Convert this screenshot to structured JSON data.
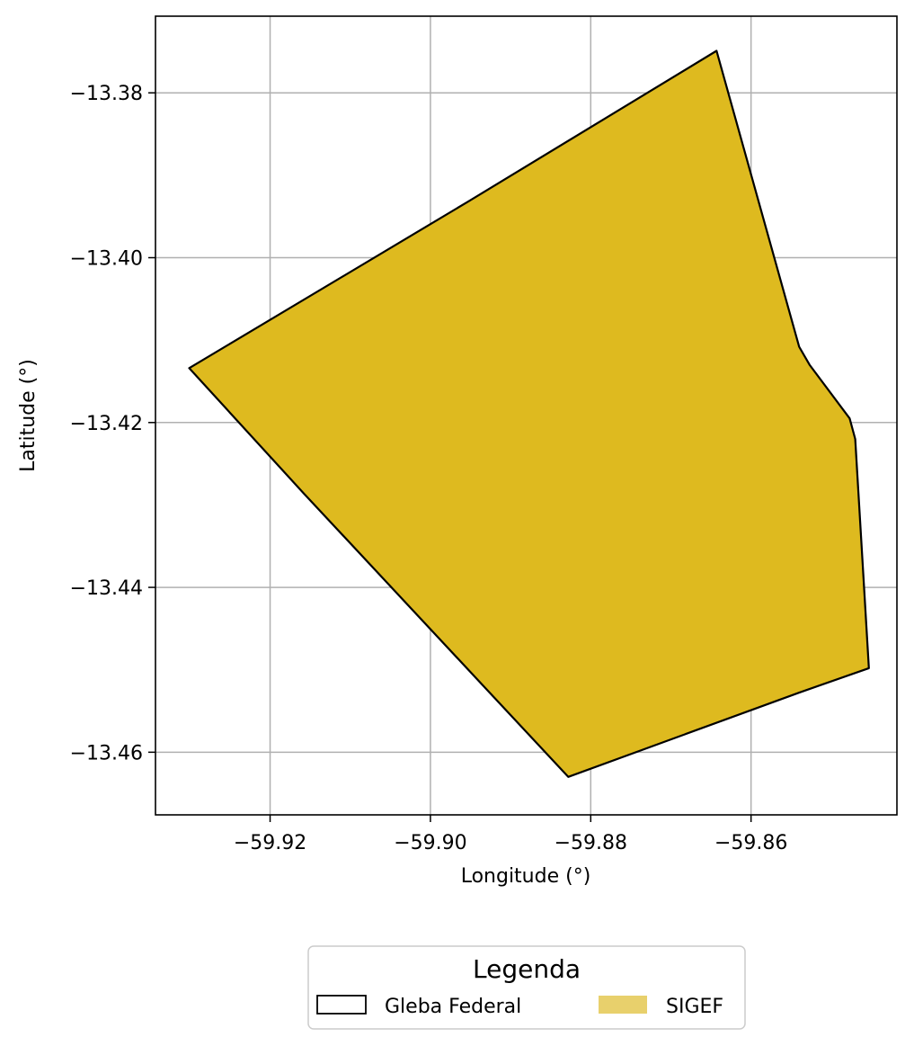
{
  "chart_data": {
    "type": "map",
    "xlabel": "Longitude (°)",
    "ylabel": "Latitude (°)",
    "xlim": [
      -59.9343,
      -59.8418
    ],
    "ylim": [
      -13.4676,
      -13.3707
    ],
    "xticks": [
      {
        "value": -59.92,
        "label": "−59.92"
      },
      {
        "value": -59.9,
        "label": "−59.90"
      },
      {
        "value": -59.88,
        "label": "−59.88"
      },
      {
        "value": -59.86,
        "label": "−59.86"
      }
    ],
    "yticks": [
      {
        "value": -13.38,
        "label": "−13.38"
      },
      {
        "value": -13.4,
        "label": "−13.40"
      },
      {
        "value": -13.42,
        "label": "−13.42"
      },
      {
        "value": -13.44,
        "label": "−13.44"
      },
      {
        "value": -13.46,
        "label": "−13.46"
      }
    ],
    "grid": true,
    "layers": [
      {
        "name": "SIGEF",
        "fill": "#deba1f",
        "stroke": "none",
        "polygon": [
          [
            -59.8643,
            -13.3749
          ],
          [
            -59.854,
            -13.4108
          ],
          [
            -59.8527,
            -13.413
          ],
          [
            -59.8477,
            -13.4195
          ],
          [
            -59.847,
            -13.422
          ],
          [
            -59.8453,
            -13.4498
          ],
          [
            -59.8541,
            -13.4528
          ],
          [
            -59.8828,
            -13.463
          ],
          [
            -59.9158,
            -13.4286
          ],
          [
            -59.9301,
            -13.4134
          ],
          [
            -59.8953,
            -13.3932
          ]
        ]
      },
      {
        "name": "Gleba Federal",
        "fill": "none",
        "stroke": "#000000",
        "polygon": [
          [
            -59.8643,
            -13.3749
          ],
          [
            -59.854,
            -13.4108
          ],
          [
            -59.8527,
            -13.413
          ],
          [
            -59.8477,
            -13.4195
          ],
          [
            -59.847,
            -13.422
          ],
          [
            -59.8453,
            -13.4498
          ],
          [
            -59.8541,
            -13.4528
          ],
          [
            -59.8828,
            -13.463
          ],
          [
            -59.9158,
            -13.4286
          ],
          [
            -59.9301,
            -13.4134
          ],
          [
            -59.8953,
            -13.3932
          ]
        ]
      }
    ],
    "legend": {
      "title": "Legenda",
      "placement": "bottom-center",
      "items": [
        {
          "label": "Gleba Federal",
          "kind": "outline",
          "stroke": "#000000"
        },
        {
          "label": "SIGEF",
          "kind": "fill",
          "fill": "#e8d06c"
        }
      ]
    }
  }
}
